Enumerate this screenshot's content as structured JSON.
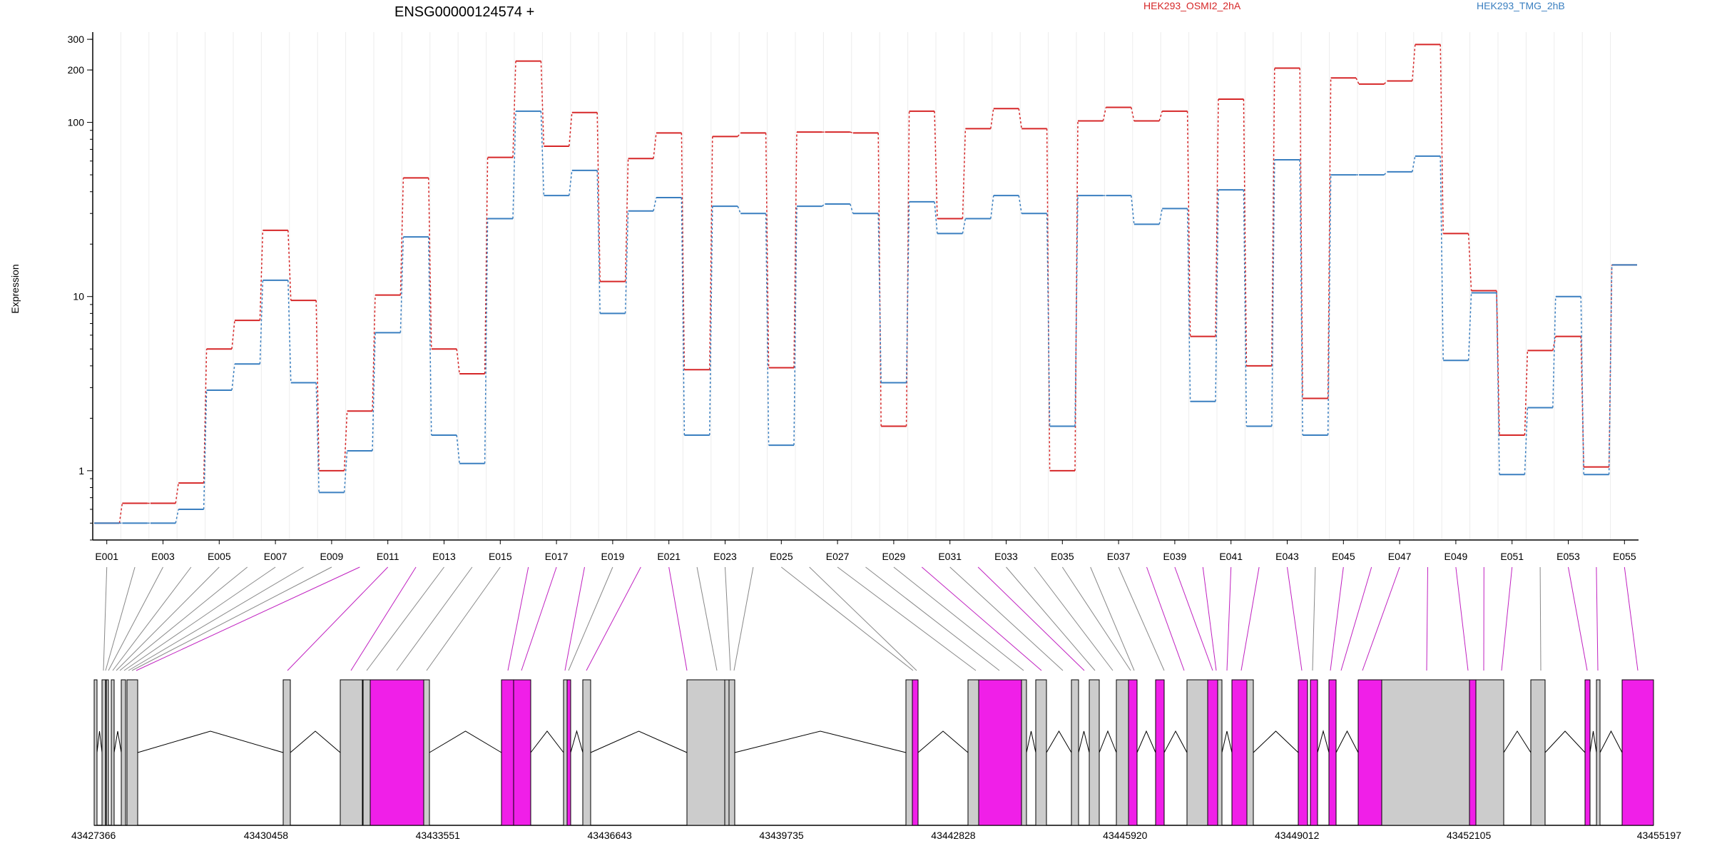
{
  "chart_data": {
    "type": "line",
    "title": "ENSG00000124574 +",
    "ylabel": "Expression",
    "xlabel": "",
    "y_scale": "log",
    "ylim": [
      0.4,
      330
    ],
    "y_ticks": [
      1,
      10,
      100,
      200,
      300
    ],
    "grid": "vertical",
    "legend_placement": "top-right",
    "categories": [
      "E001",
      "E002",
      "E003",
      "E004",
      "E005",
      "E006",
      "E007",
      "E008",
      "E009",
      "E010",
      "E011",
      "E012",
      "E013",
      "E014",
      "E015",
      "E016",
      "E017",
      "E018",
      "E019",
      "E020",
      "E021",
      "E022",
      "E023",
      "E024",
      "E025",
      "E026",
      "E027",
      "E028",
      "E029",
      "E030",
      "E031",
      "E032",
      "E033",
      "E034",
      "E035",
      "E036",
      "E037",
      "E038",
      "E039",
      "E040",
      "E041",
      "E042",
      "E043",
      "E044",
      "E045",
      "E046",
      "E047",
      "E048",
      "E049",
      "E050",
      "E051",
      "E052",
      "E053",
      "E054",
      "E055"
    ],
    "x_tick_labels": [
      "E001",
      "E003",
      "E005",
      "E007",
      "E009",
      "E011",
      "E013",
      "E015",
      "E017",
      "E019",
      "E021",
      "E023",
      "E025",
      "E027",
      "E029",
      "E031",
      "E033",
      "E035",
      "E037",
      "E039",
      "E041",
      "E043",
      "E045",
      "E047",
      "E049",
      "E051",
      "E053",
      "E055"
    ],
    "series": [
      {
        "name": "HEK293_OSMI2_2hA",
        "color": "#d62728",
        "values": [
          0.5,
          0.65,
          0.65,
          0.85,
          5,
          7.3,
          24,
          9.5,
          1,
          2.2,
          10.2,
          48,
          5,
          3.6,
          63,
          225,
          73,
          114,
          12.2,
          62,
          87,
          3.8,
          83,
          87,
          3.9,
          88,
          88,
          87,
          1.8,
          116,
          28,
          92,
          120,
          92,
          1,
          102,
          122,
          102,
          116,
          5.9,
          136,
          4,
          205,
          2.6,
          180,
          166,
          173,
          280,
          23,
          10.8,
          1.6,
          4.9,
          5.9,
          1.05,
          15.2
        ]
      },
      {
        "name": "HEK293_TMG_2hB",
        "color": "#3a7fc0",
        "values": [
          0.5,
          0.5,
          0.5,
          0.6,
          2.9,
          4.1,
          12.4,
          3.2,
          0.75,
          1.3,
          6.2,
          22,
          1.6,
          1.1,
          28,
          116,
          38,
          53,
          8,
          31,
          37,
          1.6,
          33,
          30,
          1.4,
          33,
          34,
          30,
          3.2,
          35,
          23,
          28,
          38,
          30,
          1.8,
          38,
          38,
          26,
          32,
          2.5,
          41,
          1.8,
          61,
          1.6,
          50,
          50,
          52,
          64,
          4.3,
          10.5,
          0.95,
          2.3,
          10,
          0.95,
          15.2
        ]
      }
    ],
    "gene_model": {
      "x_tick_labels": [
        "43427366",
        "43430458",
        "43433551",
        "43436643",
        "43439735",
        "43442828",
        "43445920",
        "43449012",
        "43452105",
        "43455197"
      ]
    }
  }
}
